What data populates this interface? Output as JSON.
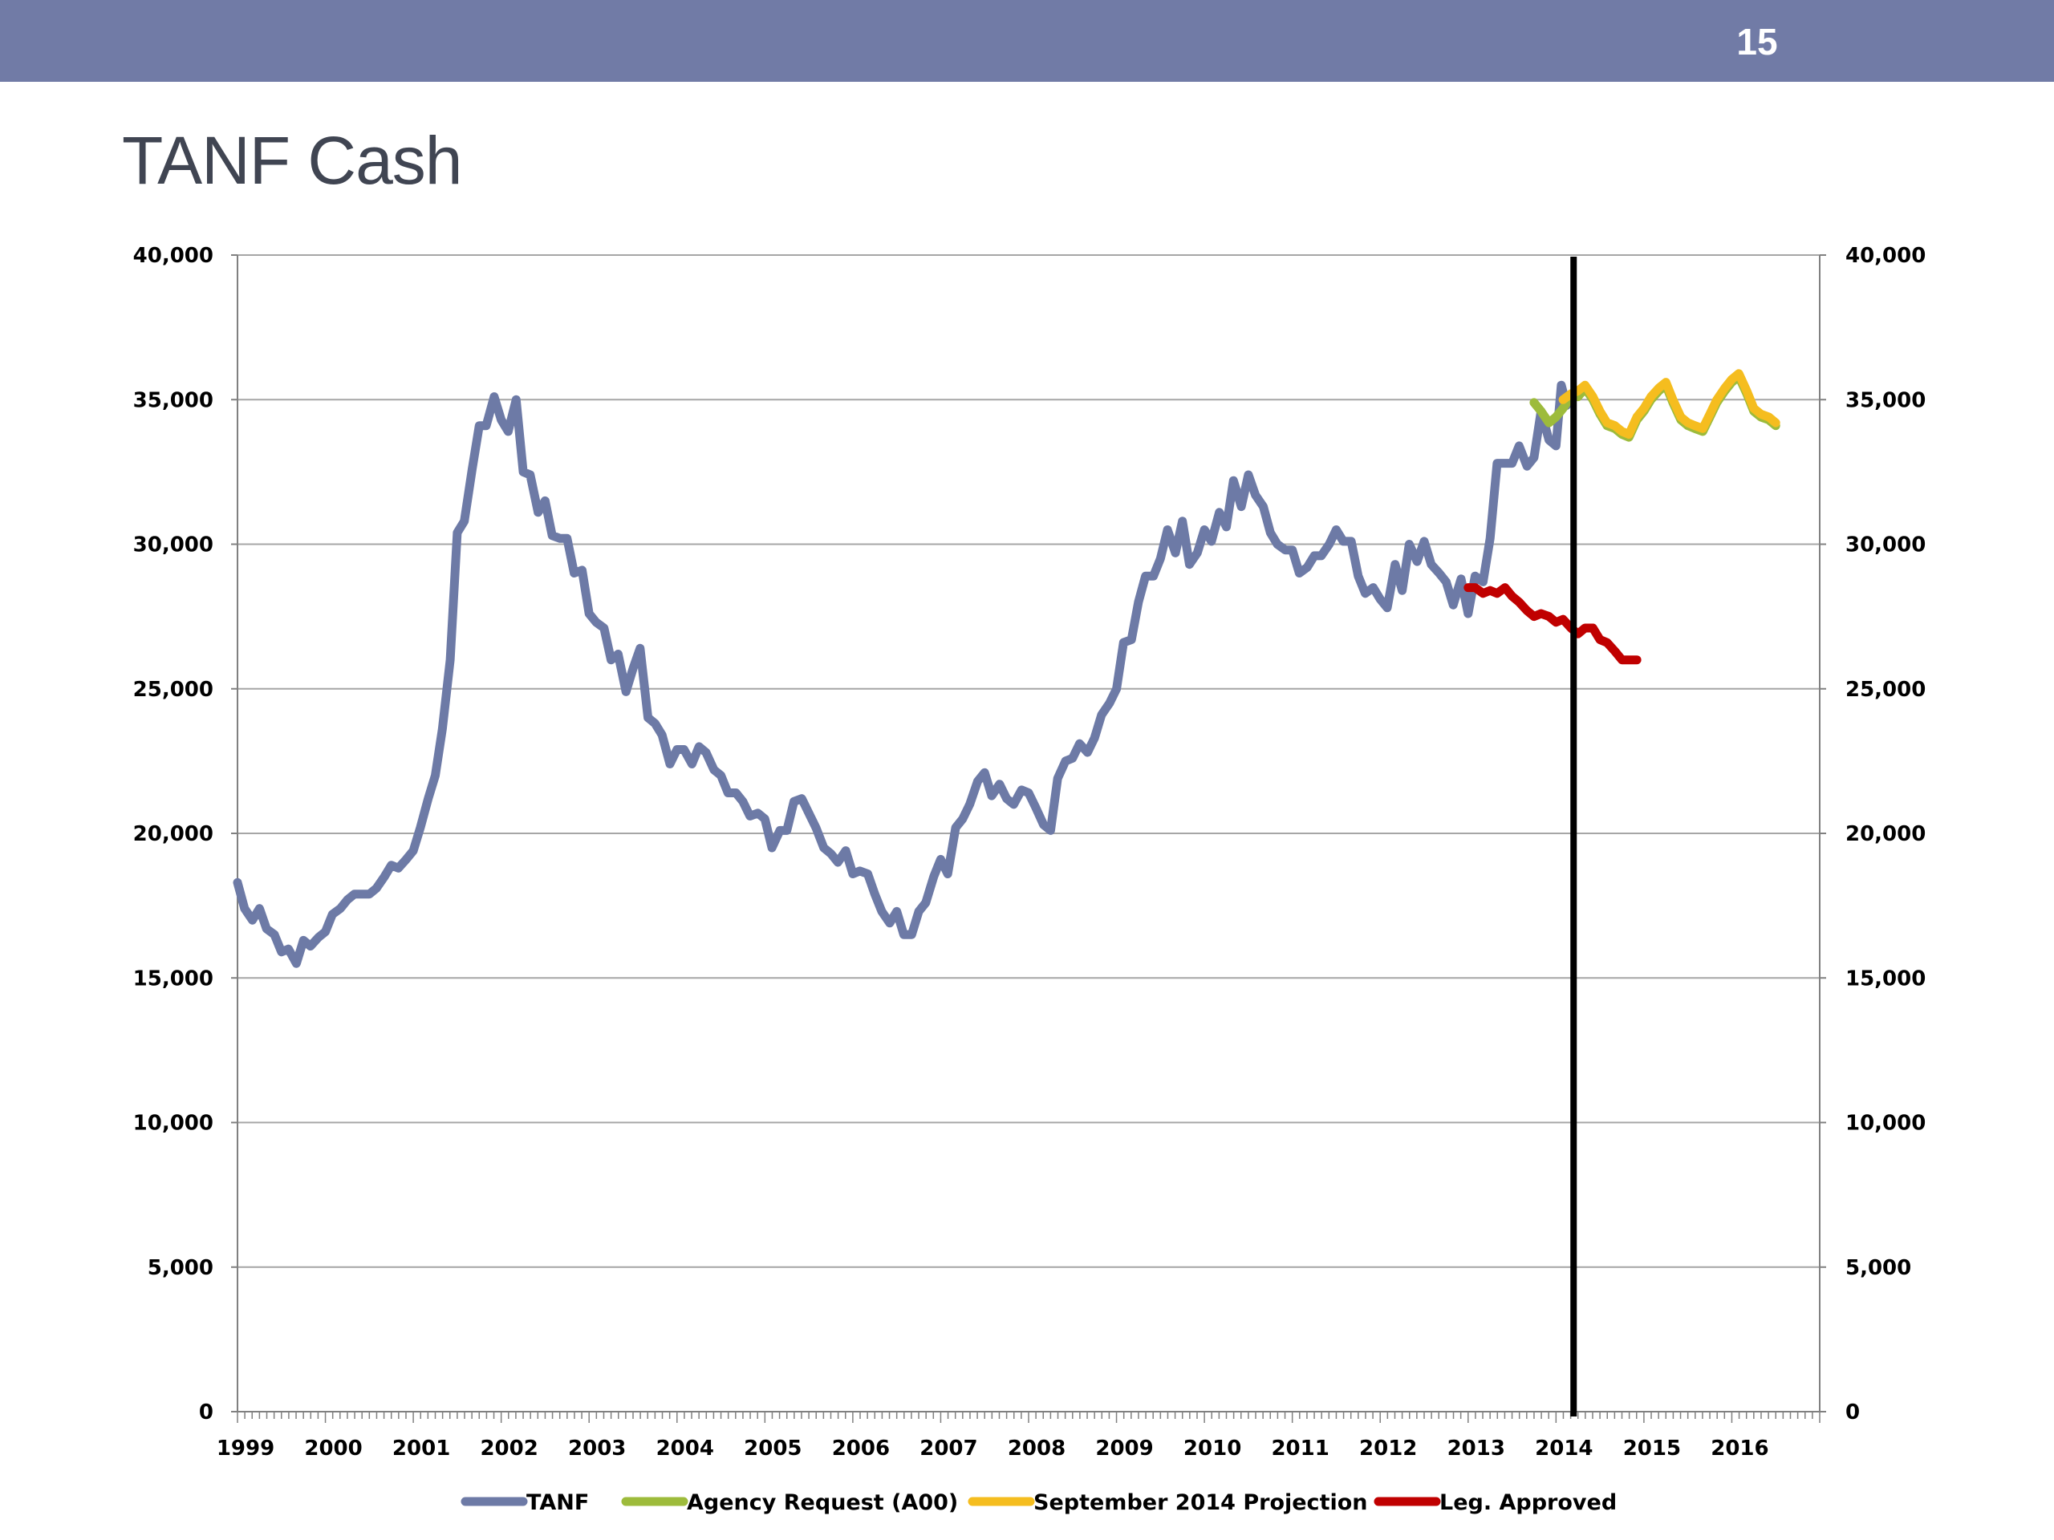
{
  "slide": {
    "page_number": "15",
    "title": "TANF Cash"
  },
  "colors": {
    "header_band": "#717ba6",
    "tanf": "#6d7aa6",
    "agency_request": "#9dbb3b",
    "september_projection": "#f5bd1f",
    "leg_approved": "#c00000",
    "marker_line": "#000000",
    "grid": "#a6a6a6"
  },
  "chart_data": {
    "type": "line",
    "title": "",
    "xlabel": "",
    "ylabel": "",
    "xlim": [
      1999.0,
      2017.0
    ],
    "ylim": [
      0,
      40000
    ],
    "y_ticks": [
      0,
      5000,
      10000,
      15000,
      20000,
      25000,
      30000,
      35000,
      40000
    ],
    "y_tick_labels": [
      "0",
      "5,000",
      "10,000",
      "15,000",
      "20,000",
      "25,000",
      "30,000",
      "35,000",
      "40,000"
    ],
    "x_tick_labels": [
      "1999",
      "2000",
      "2001",
      "2002",
      "2003",
      "2004",
      "2005",
      "2006",
      "2007",
      "2008",
      "2009",
      "2010",
      "2011",
      "2012",
      "2013",
      "2014",
      "2015",
      "2016"
    ],
    "secondary_y_axis": true,
    "grid": "horizontal",
    "legend_position": "bottom",
    "vertical_marker_x": 2014.2,
    "series": [
      {
        "name": "TANF",
        "color": "#6d7aa6",
        "points": [
          [
            1999.0,
            18300
          ],
          [
            1999.08,
            17400
          ],
          [
            1999.17,
            17000
          ],
          [
            1999.25,
            17400
          ],
          [
            1999.33,
            16700
          ],
          [
            1999.42,
            16500
          ],
          [
            1999.5,
            15900
          ],
          [
            1999.58,
            16000
          ],
          [
            1999.67,
            15500
          ],
          [
            1999.75,
            16300
          ],
          [
            1999.83,
            16100
          ],
          [
            1999.92,
            16400
          ],
          [
            2000.0,
            16600
          ],
          [
            2000.08,
            17200
          ],
          [
            2000.17,
            17400
          ],
          [
            2000.25,
            17700
          ],
          [
            2000.33,
            17900
          ],
          [
            2000.5,
            17900
          ],
          [
            2000.58,
            18100
          ],
          [
            2000.67,
            18500
          ],
          [
            2000.75,
            18900
          ],
          [
            2000.83,
            18800
          ],
          [
            2000.92,
            19100
          ],
          [
            2001.0,
            19400
          ],
          [
            2001.08,
            20200
          ],
          [
            2001.17,
            21200
          ],
          [
            2001.25,
            22000
          ],
          [
            2001.33,
            23600
          ],
          [
            2001.42,
            26000
          ],
          [
            2001.5,
            30400
          ],
          [
            2001.58,
            30800
          ],
          [
            2001.67,
            32600
          ],
          [
            2001.75,
            34100
          ],
          [
            2001.83,
            34100
          ],
          [
            2001.92,
            35100
          ],
          [
            2002.0,
            34300
          ],
          [
            2002.08,
            33900
          ],
          [
            2002.17,
            35000
          ],
          [
            2002.25,
            32500
          ],
          [
            2002.33,
            32400
          ],
          [
            2002.42,
            31100
          ],
          [
            2002.5,
            31500
          ],
          [
            2002.58,
            30300
          ],
          [
            2002.67,
            30200
          ],
          [
            2002.75,
            30200
          ],
          [
            2002.83,
            29000
          ],
          [
            2002.92,
            29100
          ],
          [
            2003.0,
            27600
          ],
          [
            2003.08,
            27300
          ],
          [
            2003.17,
            27100
          ],
          [
            2003.25,
            26000
          ],
          [
            2003.33,
            26200
          ],
          [
            2003.42,
            24900
          ],
          [
            2003.5,
            25700
          ],
          [
            2003.58,
            26400
          ],
          [
            2003.67,
            24000
          ],
          [
            2003.75,
            23800
          ],
          [
            2003.83,
            23400
          ],
          [
            2003.92,
            22400
          ],
          [
            2004.0,
            22900
          ],
          [
            2004.08,
            22900
          ],
          [
            2004.17,
            22400
          ],
          [
            2004.25,
            23000
          ],
          [
            2004.33,
            22800
          ],
          [
            2004.42,
            22200
          ],
          [
            2004.5,
            22000
          ],
          [
            2004.58,
            21400
          ],
          [
            2004.67,
            21400
          ],
          [
            2004.75,
            21100
          ],
          [
            2004.83,
            20600
          ],
          [
            2004.92,
            20700
          ],
          [
            2005.0,
            20500
          ],
          [
            2005.08,
            19500
          ],
          [
            2005.17,
            20100
          ],
          [
            2005.25,
            20100
          ],
          [
            2005.33,
            21100
          ],
          [
            2005.42,
            21200
          ],
          [
            2005.5,
            20700
          ],
          [
            2005.58,
            20200
          ],
          [
            2005.67,
            19500
          ],
          [
            2005.75,
            19300
          ],
          [
            2005.83,
            19000
          ],
          [
            2005.92,
            19400
          ],
          [
            2006.0,
            18600
          ],
          [
            2006.08,
            18700
          ],
          [
            2006.17,
            18600
          ],
          [
            2006.25,
            17900
          ],
          [
            2006.33,
            17300
          ],
          [
            2006.42,
            16900
          ],
          [
            2006.5,
            17300
          ],
          [
            2006.58,
            16500
          ],
          [
            2006.67,
            16500
          ],
          [
            2006.75,
            17300
          ],
          [
            2006.83,
            17600
          ],
          [
            2006.92,
            18500
          ],
          [
            2007.0,
            19100
          ],
          [
            2007.08,
            18600
          ],
          [
            2007.17,
            20200
          ],
          [
            2007.25,
            20500
          ],
          [
            2007.33,
            21000
          ],
          [
            2007.42,
            21800
          ],
          [
            2007.5,
            22100
          ],
          [
            2007.58,
            21300
          ],
          [
            2007.67,
            21700
          ],
          [
            2007.75,
            21200
          ],
          [
            2007.83,
            21000
          ],
          [
            2007.92,
            21500
          ],
          [
            2008.0,
            21400
          ],
          [
            2008.08,
            20900
          ],
          [
            2008.17,
            20300
          ],
          [
            2008.25,
            20100
          ],
          [
            2008.33,
            21900
          ],
          [
            2008.42,
            22500
          ],
          [
            2008.5,
            22600
          ],
          [
            2008.58,
            23100
          ],
          [
            2008.67,
            22800
          ],
          [
            2008.75,
            23300
          ],
          [
            2008.83,
            24100
          ],
          [
            2008.92,
            24500
          ],
          [
            2009.0,
            25000
          ],
          [
            2009.08,
            26600
          ],
          [
            2009.17,
            26700
          ],
          [
            2009.25,
            28000
          ],
          [
            2009.33,
            28900
          ],
          [
            2009.42,
            28900
          ],
          [
            2009.5,
            29500
          ],
          [
            2009.58,
            30500
          ],
          [
            2009.67,
            29700
          ],
          [
            2009.75,
            30800
          ],
          [
            2009.83,
            29300
          ],
          [
            2009.92,
            29700
          ],
          [
            2010.0,
            30500
          ],
          [
            2010.08,
            30100
          ],
          [
            2010.17,
            31100
          ],
          [
            2010.25,
            30600
          ],
          [
            2010.33,
            32200
          ],
          [
            2010.42,
            31300
          ],
          [
            2010.5,
            32400
          ],
          [
            2010.58,
            31700
          ],
          [
            2010.67,
            31300
          ],
          [
            2010.75,
            30400
          ],
          [
            2010.83,
            30000
          ],
          [
            2010.92,
            29800
          ],
          [
            2011.0,
            29800
          ],
          [
            2011.08,
            29000
          ],
          [
            2011.17,
            29200
          ],
          [
            2011.25,
            29600
          ],
          [
            2011.33,
            29600
          ],
          [
            2011.42,
            30000
          ],
          [
            2011.5,
            30500
          ],
          [
            2011.58,
            30100
          ],
          [
            2011.67,
            30100
          ],
          [
            2011.75,
            28900
          ],
          [
            2011.83,
            28300
          ],
          [
            2011.92,
            28500
          ],
          [
            2012.0,
            28100
          ],
          [
            2012.08,
            27800
          ],
          [
            2012.17,
            29300
          ],
          [
            2012.25,
            28400
          ],
          [
            2012.33,
            30000
          ],
          [
            2012.42,
            29400
          ],
          [
            2012.5,
            30100
          ],
          [
            2012.58,
            29300
          ],
          [
            2012.67,
            29000
          ],
          [
            2012.75,
            28700
          ],
          [
            2012.83,
            27900
          ],
          [
            2012.92,
            28800
          ],
          [
            2013.0,
            27600
          ],
          [
            2013.08,
            28900
          ],
          [
            2013.17,
            28700
          ],
          [
            2013.25,
            30200
          ],
          [
            2013.33,
            32800
          ],
          [
            2013.42,
            32800
          ],
          [
            2013.5,
            32800
          ],
          [
            2013.58,
            33400
          ],
          [
            2013.67,
            32700
          ],
          [
            2013.75,
            33000
          ],
          [
            2013.83,
            34600
          ],
          [
            2013.92,
            33600
          ],
          [
            2014.0,
            33400
          ],
          [
            2014.06,
            35500
          ],
          [
            2014.12,
            34800
          ]
        ]
      },
      {
        "name": "Agency Request (A00)",
        "color": "#9dbb3b",
        "points": [
          [
            2013.75,
            34900
          ],
          [
            2013.83,
            34600
          ],
          [
            2013.92,
            34200
          ],
          [
            2014.0,
            34400
          ],
          [
            2014.08,
            34700
          ],
          [
            2014.17,
            35100
          ],
          [
            2014.25,
            35100
          ],
          [
            2014.33,
            35400
          ],
          [
            2014.42,
            35000
          ],
          [
            2014.5,
            34500
          ],
          [
            2014.58,
            34100
          ],
          [
            2014.67,
            34000
          ],
          [
            2014.75,
            33800
          ],
          [
            2014.83,
            33700
          ],
          [
            2014.92,
            34300
          ],
          [
            2015.0,
            34600
          ],
          [
            2015.08,
            35000
          ],
          [
            2015.17,
            35300
          ],
          [
            2015.25,
            35500
          ],
          [
            2015.33,
            34900
          ],
          [
            2015.42,
            34300
          ],
          [
            2015.5,
            34100
          ],
          [
            2015.58,
            34000
          ],
          [
            2015.67,
            33900
          ],
          [
            2015.75,
            34400
          ],
          [
            2015.83,
            34900
          ],
          [
            2015.92,
            35300
          ],
          [
            2016.0,
            35600
          ],
          [
            2016.08,
            35800
          ],
          [
            2016.17,
            35200
          ],
          [
            2016.25,
            34600
          ],
          [
            2016.33,
            34400
          ],
          [
            2016.42,
            34300
          ],
          [
            2016.5,
            34100
          ]
        ]
      },
      {
        "name": "September 2014 Projection",
        "color": "#f5bd1f",
        "points": [
          [
            2014.08,
            35000
          ],
          [
            2014.17,
            35200
          ],
          [
            2014.25,
            35300
          ],
          [
            2014.33,
            35500
          ],
          [
            2014.42,
            35100
          ],
          [
            2014.5,
            34600
          ],
          [
            2014.58,
            34200
          ],
          [
            2014.67,
            34100
          ],
          [
            2014.75,
            33900
          ],
          [
            2014.83,
            33800
          ],
          [
            2014.92,
            34400
          ],
          [
            2015.0,
            34700
          ],
          [
            2015.08,
            35100
          ],
          [
            2015.17,
            35400
          ],
          [
            2015.25,
            35600
          ],
          [
            2015.33,
            35000
          ],
          [
            2015.42,
            34400
          ],
          [
            2015.5,
            34200
          ],
          [
            2015.58,
            34100
          ],
          [
            2015.67,
            34000
          ],
          [
            2015.75,
            34500
          ],
          [
            2015.83,
            35000
          ],
          [
            2015.92,
            35400
          ],
          [
            2016.0,
            35700
          ],
          [
            2016.08,
            35900
          ],
          [
            2016.17,
            35300
          ],
          [
            2016.25,
            34700
          ],
          [
            2016.33,
            34500
          ],
          [
            2016.42,
            34400
          ],
          [
            2016.5,
            34200
          ]
        ]
      },
      {
        "name": "Leg. Approved",
        "color": "#c00000",
        "points": [
          [
            2013.0,
            28500
          ],
          [
            2013.08,
            28500
          ],
          [
            2013.17,
            28300
          ],
          [
            2013.25,
            28400
          ],
          [
            2013.33,
            28300
          ],
          [
            2013.42,
            28500
          ],
          [
            2013.5,
            28200
          ],
          [
            2013.58,
            28000
          ],
          [
            2013.67,
            27700
          ],
          [
            2013.75,
            27500
          ],
          [
            2013.83,
            27600
          ],
          [
            2013.92,
            27500
          ],
          [
            2014.0,
            27300
          ],
          [
            2014.08,
            27400
          ],
          [
            2014.17,
            27100
          ],
          [
            2014.25,
            26900
          ],
          [
            2014.33,
            27100
          ],
          [
            2014.42,
            27100
          ],
          [
            2014.5,
            26700
          ],
          [
            2014.58,
            26600
          ],
          [
            2014.67,
            26300
          ],
          [
            2014.75,
            26000
          ],
          [
            2014.83,
            26000
          ],
          [
            2014.92,
            26000
          ]
        ]
      }
    ]
  }
}
